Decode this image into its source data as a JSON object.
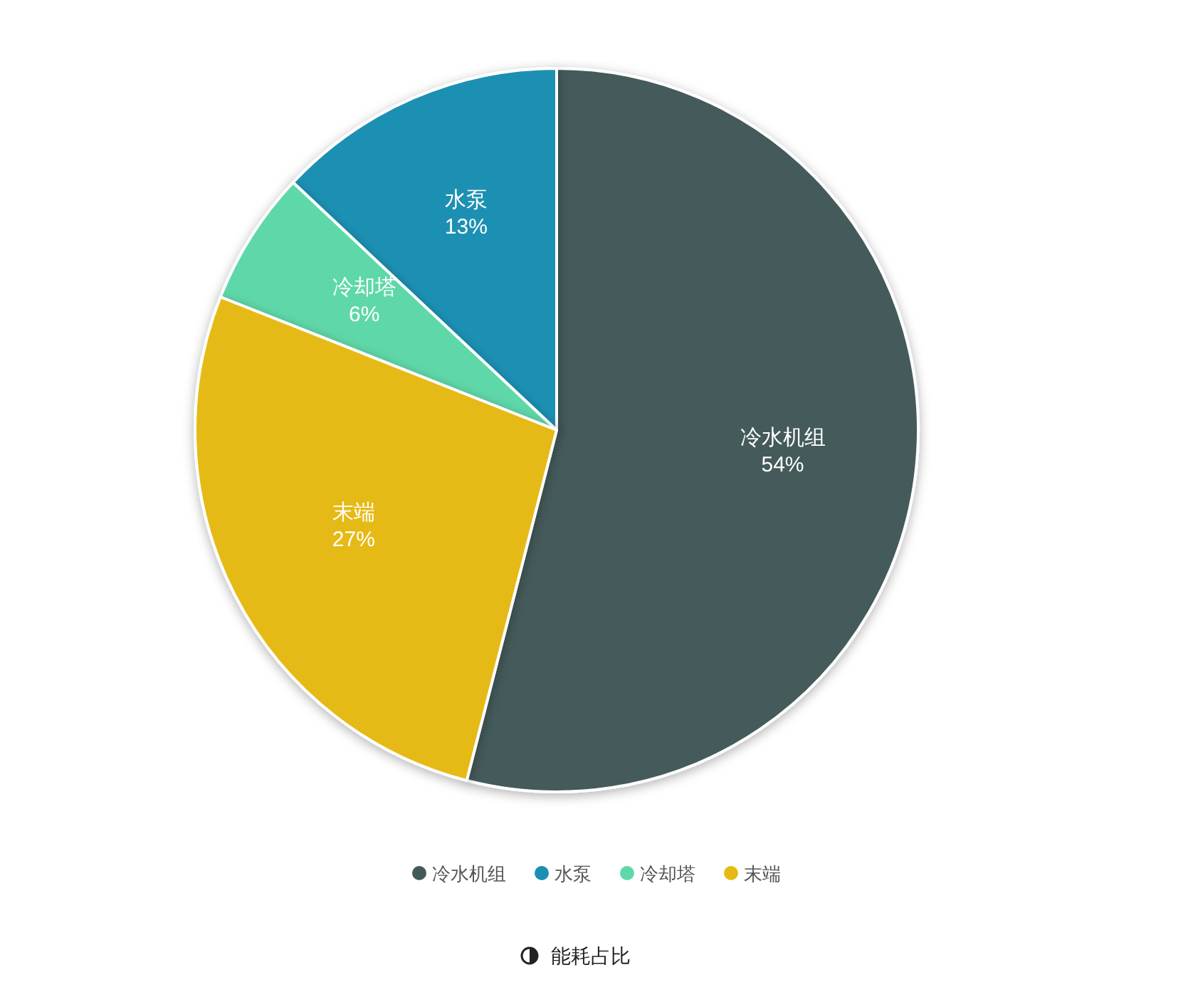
{
  "chart_data": {
    "type": "pie",
    "title": "能耗占比",
    "categories": [
      "冷水机组",
      "水泵",
      "冷却塔",
      "末端"
    ],
    "values": [
      54,
      13,
      6,
      27
    ],
    "value_labels": [
      "54%",
      "13%",
      "6%",
      "27%"
    ],
    "colors": [
      "#445a5a",
      "#1a90b3",
      "#5fd8a9",
      "#e6ba16"
    ],
    "legend": "bottom"
  }
}
